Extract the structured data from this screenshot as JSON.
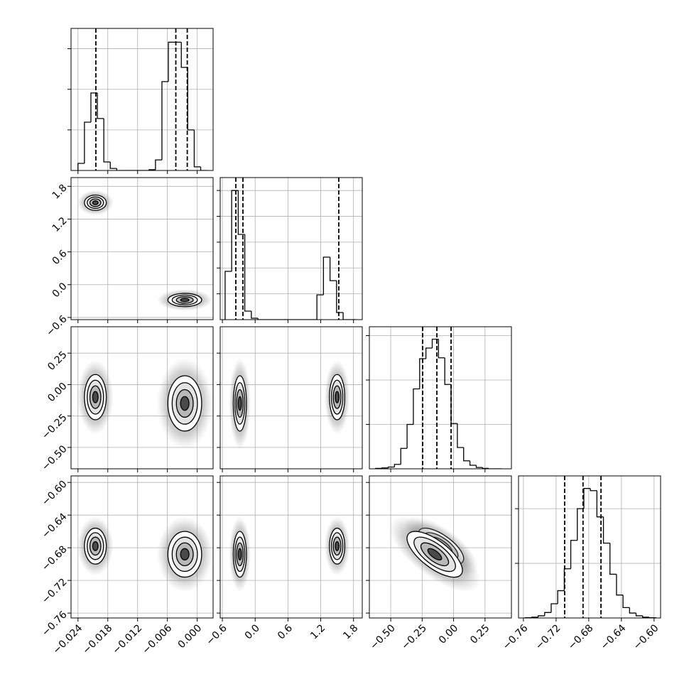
{
  "chart_data": {
    "type": "corner",
    "grid": true,
    "color": "#000000",
    "parameters": [
      {
        "xlim": [
          -0.0254,
          0.0032
        ],
        "ticks": [
          {
            "value": -0.024,
            "label": "−0.024"
          },
          {
            "value": -0.018,
            "label": "−0.018"
          },
          {
            "value": -0.012,
            "label": "−0.012"
          },
          {
            "value": -0.006,
            "label": "−0.006"
          },
          {
            "value": 0,
            "label": "0.000"
          }
        ],
        "bins": [
          -0.024,
          -0.0227,
          -0.0214,
          -0.0201,
          -0.0188,
          -0.0175,
          -0.0162,
          -0.0149,
          -0.0136,
          -0.0123,
          -0.011,
          -0.0097,
          -0.0084,
          -0.0071,
          -0.0058,
          -0.0045,
          -0.0032,
          -0.0019,
          -0.0006,
          0.0007,
          0.002
        ],
        "counts": [
          175,
          1190,
          1910,
          1280,
          210,
          50,
          0,
          0,
          0,
          0,
          0,
          20,
          260,
          2190,
          3160,
          3160,
          2540,
          1000,
          90,
          0
        ],
        "hist_ylim": [
          0,
          3500
        ],
        "hist_yticks": [
          1000,
          2000,
          3000
        ],
        "quantiles": [
          -0.0204,
          -0.0043,
          -0.002
        ]
      },
      {
        "xlim": [
          -0.64,
          1.96
        ],
        "ticks": [
          {
            "value": -0.6,
            "label": "−0.6"
          },
          {
            "value": 0,
            "label": "0.0"
          },
          {
            "value": 0.6,
            "label": "0.6"
          },
          {
            "value": 1.2,
            "label": "1.2"
          },
          {
            "value": 1.8,
            "label": "1.8"
          }
        ],
        "bins": [
          -0.55,
          -0.43,
          -0.31,
          -0.19,
          -0.07,
          0.05,
          0.17,
          0.29,
          0.41,
          0.53,
          0.65,
          0.77,
          0.89,
          1.01,
          1.13,
          1.25,
          1.37,
          1.49,
          1.61,
          1.73,
          1.85
        ],
        "counts": [
          1870,
          5000,
          3300,
          330,
          55,
          0,
          0,
          0,
          0,
          0,
          0,
          0,
          0,
          0,
          960,
          2420,
          1510,
          275,
          0,
          0
        ],
        "hist_ylim": [
          0,
          5500
        ],
        "hist_yticks": [
          1000,
          2000,
          3000,
          4000,
          5000
        ],
        "quantiles": [
          -0.354,
          -0.224,
          1.53
        ]
      },
      {
        "xlim": [
          -0.67,
          0.46
        ],
        "ticks": [
          {
            "value": -0.5,
            "label": "−0.50"
          },
          {
            "value": -0.25,
            "label": "−0.25"
          },
          {
            "value": 0,
            "label": "0.00"
          },
          {
            "value": 0.25,
            "label": "0.25"
          }
        ],
        "bins": [
          -0.62,
          -0.57,
          -0.52,
          -0.47,
          -0.42,
          -0.37,
          -0.32,
          -0.27,
          -0.22,
          -0.17,
          -0.12,
          -0.07,
          -0.02,
          0.03,
          0.08,
          0.13,
          0.18,
          0.23,
          0.28,
          0.33,
          0.38
        ],
        "counts": [
          5,
          10,
          20,
          50,
          230,
          500,
          900,
          1240,
          1360,
          1460,
          1250,
          950,
          510,
          240,
          90,
          40,
          15,
          5,
          0,
          0
        ],
        "hist_ylim": [
          0,
          1600
        ],
        "hist_yticks": [
          500,
          1000,
          1500
        ],
        "quantiles": [
          -0.246,
          -0.133,
          -0.02
        ]
      },
      {
        "xlim": [
          -0.766,
          -0.592
        ],
        "ticks": [
          {
            "value": -0.76,
            "label": "−0.76"
          },
          {
            "value": -0.72,
            "label": "−0.72"
          },
          {
            "value": -0.68,
            "label": "−0.68"
          },
          {
            "value": -0.64,
            "label": "−0.64"
          },
          {
            "value": -0.6,
            "label": "−0.60"
          }
        ],
        "bins": [
          -0.758,
          -0.75,
          -0.742,
          -0.734,
          -0.726,
          -0.718,
          -0.71,
          -0.702,
          -0.694,
          -0.686,
          -0.678,
          -0.67,
          -0.662,
          -0.654,
          -0.646,
          -0.638,
          -0.63,
          -0.622,
          -0.614,
          -0.606,
          -0.598
        ],
        "counts": [
          5,
          15,
          40,
          100,
          260,
          500,
          900,
          1420,
          2000,
          2370,
          2330,
          1850,
          1370,
          800,
          420,
          190,
          90,
          40,
          15,
          5
        ],
        "hist_ylim": [
          0,
          2600
        ],
        "hist_yticks": [
          1000,
          2000
        ],
        "quantiles": [
          -0.7095,
          -0.687,
          -0.665
        ]
      }
    ],
    "modes": [
      {
        "mean": [
          -0.0205,
          1.5,
          -0.1,
          -0.678
        ],
        "sd": [
          0.0011,
          0.07,
          0.09,
          0.011
        ]
      },
      {
        "mean": [
          -0.0025,
          -0.28,
          -0.15,
          -0.688
        ],
        "sd": [
          0.0017,
          0.06,
          0.11,
          0.014
        ]
      }
    ],
    "correlations": [
      {
        "params": [
          2,
          3
        ],
        "value": -0.7
      }
    ]
  }
}
